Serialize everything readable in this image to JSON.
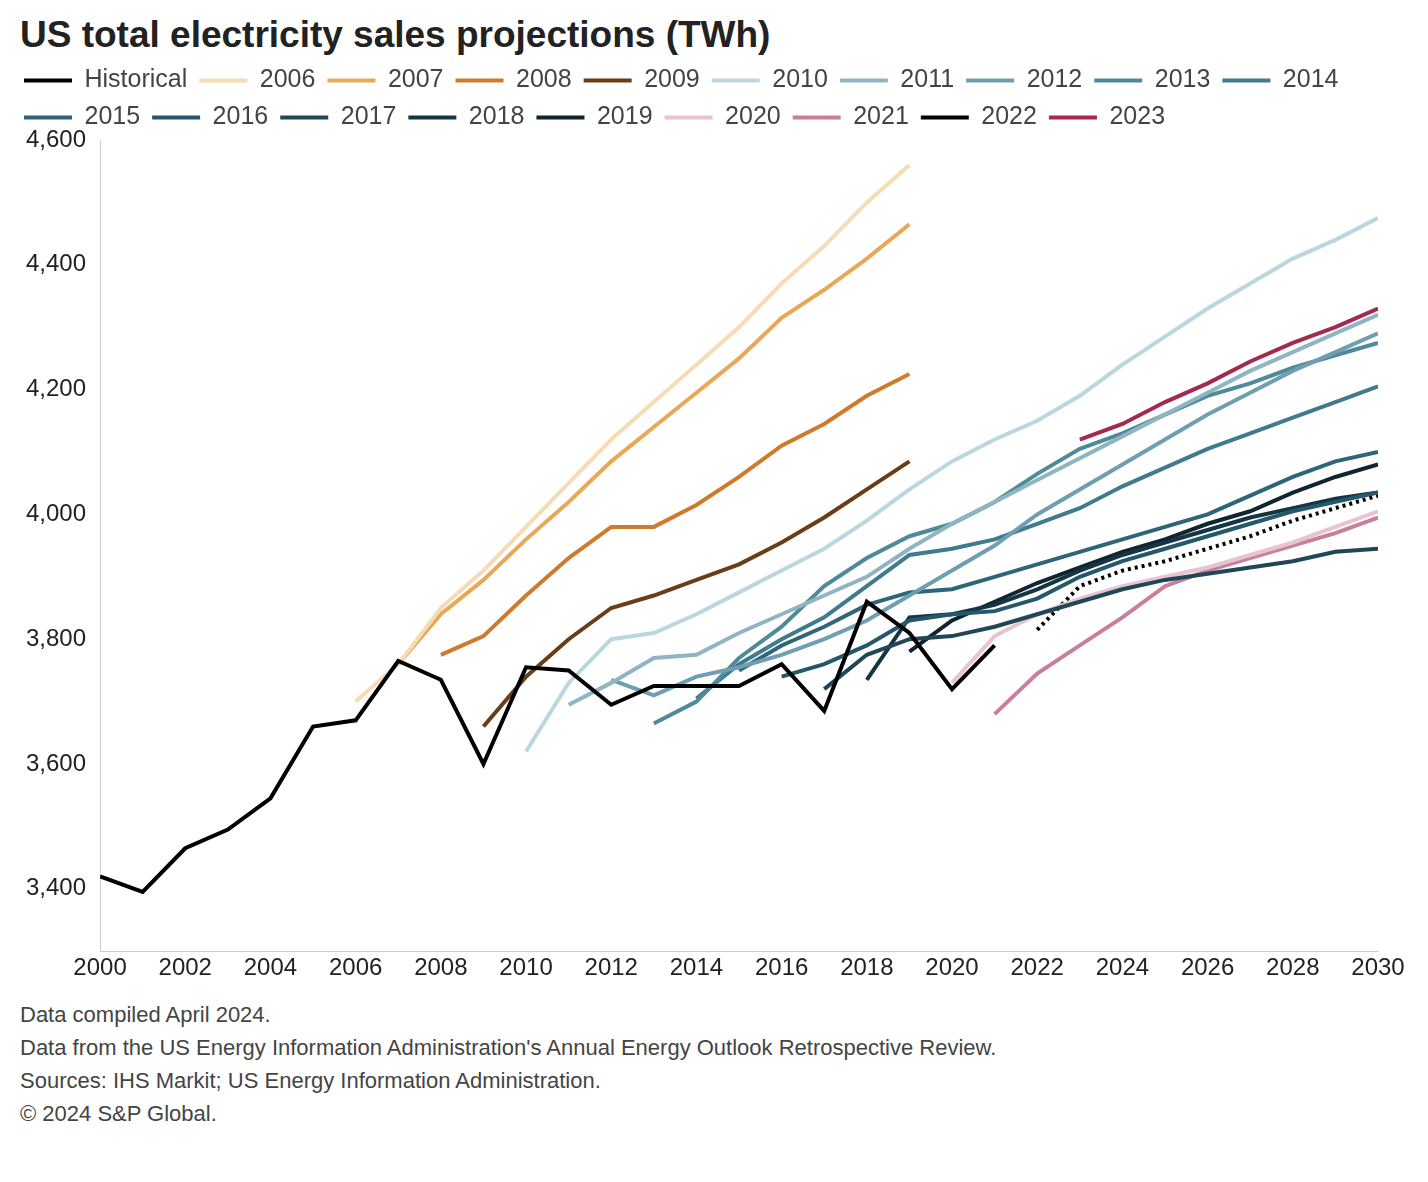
{
  "chart_data": {
    "type": "line",
    "title": "US total electricity sales projections (TWh)",
    "notes": [
      "Data compiled April 2024.",
      "Data from the US Energy Information Administration's Annual Energy Outlook Retrospective Review.",
      "Sources: IHS Markit; US Energy Information Administration.",
      "© 2024 S&P Global."
    ],
    "legend": "top-left",
    "grid": false,
    "x": [
      2000,
      2001,
      2002,
      2003,
      2004,
      2005,
      2006,
      2007,
      2008,
      2009,
      2010,
      2011,
      2012,
      2013,
      2014,
      2015,
      2016,
      2017,
      2018,
      2019,
      2020,
      2021,
      2022,
      2023,
      2024,
      2025,
      2026,
      2027,
      2028,
      2029,
      2030
    ],
    "xlim": [
      2000,
      2030
    ],
    "xticks": [
      2000,
      2002,
      2004,
      2006,
      2008,
      2010,
      2012,
      2014,
      2016,
      2018,
      2020,
      2022,
      2024,
      2026,
      2028,
      2030
    ],
    "ylim": [
      3300,
      4600
    ],
    "yticks": [
      {
        "value": 3400,
        "label": "3,400"
      },
      {
        "value": 3600,
        "label": "3,600"
      },
      {
        "value": 3800,
        "label": "3,800"
      },
      {
        "value": 4000,
        "label": "4,000"
      },
      {
        "value": 4200,
        "label": "4,200"
      },
      {
        "value": 4400,
        "label": "4,400"
      },
      {
        "value": 4600,
        "label": "4,600"
      }
    ],
    "series": [
      {
        "name": "Historical",
        "color": "#000000",
        "values": [
          3420,
          3395,
          3465,
          3495,
          3545,
          3660,
          3670,
          3765,
          3735,
          3600,
          3755,
          3750,
          3695,
          3725,
          3725,
          3725,
          3760,
          3685,
          3860,
          3810,
          3720,
          3790,
          null,
          null,
          null,
          null,
          null,
          null,
          null,
          null,
          null
        ]
      },
      {
        "name": "2006",
        "color": "#f5dcb5",
        "values": [
          null,
          null,
          null,
          null,
          null,
          null,
          3700,
          3760,
          3850,
          3910,
          3980,
          4050,
          4120,
          4180,
          4240,
          4300,
          4370,
          4430,
          4500,
          4560,
          null,
          null,
          null,
          null,
          null,
          null,
          null,
          null,
          null,
          null,
          null
        ]
      },
      {
        "name": "2007",
        "color": "#e8a857",
        "values": [
          null,
          null,
          null,
          null,
          null,
          null,
          null,
          3760,
          3840,
          3895,
          3960,
          4020,
          4085,
          4140,
          4195,
          4250,
          4315,
          4360,
          4410,
          4465,
          null,
          null,
          null,
          null,
          null,
          null,
          null,
          null,
          null,
          null,
          null
        ]
      },
      {
        "name": "2008",
        "color": "#d07a2c",
        "values": [
          null,
          null,
          null,
          null,
          null,
          null,
          null,
          null,
          3775,
          3805,
          3870,
          3930,
          3980,
          3980,
          4015,
          4060,
          4110,
          4145,
          4190,
          4225,
          null,
          null,
          null,
          null,
          null,
          null,
          null,
          null,
          null,
          null,
          null
        ]
      },
      {
        "name": "2009",
        "color": "#6b3d16",
        "values": [
          null,
          null,
          null,
          null,
          null,
          null,
          null,
          null,
          null,
          3660,
          3740,
          3800,
          3850,
          3870,
          3895,
          3920,
          3955,
          3995,
          4040,
          4085,
          null,
          null,
          null,
          null,
          null,
          null,
          null,
          null,
          null,
          null,
          null
        ]
      },
      {
        "name": "2010",
        "color": "#bcd6e0",
        "values": [
          null,
          null,
          null,
          null,
          null,
          null,
          null,
          null,
          null,
          null,
          3620,
          3730,
          3800,
          3810,
          3840,
          3875,
          3910,
          3945,
          3990,
          4040,
          4085,
          4120,
          4150,
          4190,
          4240,
          4285,
          4330,
          4370,
          4410,
          4440,
          4475
        ]
      },
      {
        "name": "2011",
        "color": "#8fb5c3",
        "values": [
          null,
          null,
          null,
          null,
          null,
          null,
          null,
          null,
          null,
          null,
          null,
          3695,
          3730,
          3770,
          3775,
          3810,
          3840,
          3870,
          3900,
          3945,
          3985,
          4020,
          4055,
          4090,
          4125,
          4160,
          4195,
          4230,
          4260,
          4290,
          4320
        ]
      },
      {
        "name": "2012",
        "color": "#6e9fb0",
        "values": [
          null,
          null,
          null,
          null,
          null,
          null,
          null,
          null,
          null,
          null,
          null,
          null,
          3735,
          3710,
          3740,
          3755,
          3775,
          3800,
          3830,
          3870,
          3910,
          3950,
          4000,
          4040,
          4080,
          4120,
          4160,
          4195,
          4230,
          4260,
          4290
        ]
      },
      {
        "name": "2013",
        "color": "#4f8a9b",
        "values": [
          null,
          null,
          null,
          null,
          null,
          null,
          null,
          null,
          null,
          null,
          null,
          null,
          null,
          3665,
          3700,
          3770,
          3820,
          3885,
          3930,
          3965,
          3985,
          4020,
          4065,
          4105,
          4130,
          4160,
          4190,
          4210,
          4235,
          4255,
          4275
        ]
      },
      {
        "name": "2014",
        "color": "#3f7a8e",
        "values": [
          null,
          null,
          null,
          null,
          null,
          null,
          null,
          null,
          null,
          null,
          null,
          null,
          null,
          null,
          3705,
          3760,
          3800,
          3835,
          3885,
          3935,
          3945,
          3960,
          3985,
          4010,
          4045,
          4075,
          4105,
          4130,
          4155,
          4180,
          4205
        ]
      },
      {
        "name": "2015",
        "color": "#2e6579",
        "values": [
          null,
          null,
          null,
          null,
          null,
          null,
          null,
          null,
          null,
          null,
          null,
          null,
          null,
          null,
          null,
          3750,
          3790,
          3820,
          3855,
          3875,
          3880,
          3900,
          3920,
          3940,
          3960,
          3980,
          4000,
          4030,
          4060,
          4085,
          4100
        ]
      },
      {
        "name": "2016",
        "color": "#25586b",
        "values": [
          null,
          null,
          null,
          null,
          null,
          null,
          null,
          null,
          null,
          null,
          null,
          null,
          null,
          null,
          null,
          null,
          3740,
          3760,
          3790,
          3830,
          3840,
          3845,
          3865,
          3900,
          3925,
          3945,
          3965,
          3985,
          4005,
          4020,
          4035
        ]
      },
      {
        "name": "2017",
        "color": "#1f4757",
        "values": [
          null,
          null,
          null,
          null,
          null,
          null,
          null,
          null,
          null,
          null,
          null,
          null,
          null,
          null,
          null,
          null,
          null,
          3720,
          3775,
          3800,
          3805,
          3820,
          3840,
          3860,
          3880,
          3895,
          3905,
          3915,
          3925,
          3940,
          3945
        ]
      },
      {
        "name": "2018",
        "color": "#163544",
        "values": [
          null,
          null,
          null,
          null,
          null,
          null,
          null,
          null,
          null,
          null,
          null,
          null,
          null,
          null,
          null,
          null,
          null,
          null,
          3735,
          3835,
          3840,
          3855,
          3880,
          3910,
          3935,
          3955,
          3975,
          3995,
          4010,
          4025,
          4035
        ]
      },
      {
        "name": "2019",
        "color": "#0f2530",
        "values": [
          null,
          null,
          null,
          null,
          null,
          null,
          null,
          null,
          null,
          null,
          null,
          null,
          null,
          null,
          null,
          null,
          null,
          null,
          null,
          3780,
          3830,
          3860,
          3890,
          3915,
          3940,
          3960,
          3985,
          4005,
          4035,
          4060,
          4080
        ]
      },
      {
        "name": "2020",
        "color": "#e8c4d0",
        "values": [
          null,
          null,
          null,
          null,
          null,
          null,
          null,
          null,
          null,
          null,
          null,
          null,
          null,
          null,
          null,
          null,
          null,
          null,
          null,
          null,
          3730,
          3805,
          3840,
          3865,
          3885,
          3900,
          3915,
          3935,
          3955,
          3980,
          4005
        ]
      },
      {
        "name": "2021",
        "color": "#c97f9b",
        "values": [
          null,
          null,
          null,
          null,
          null,
          null,
          null,
          null,
          null,
          null,
          null,
          null,
          null,
          null,
          null,
          null,
          null,
          null,
          null,
          null,
          null,
          3680,
          3745,
          3790,
          3835,
          3885,
          3910,
          3930,
          3950,
          3970,
          3995
        ]
      },
      {
        "name": "2022",
        "color": "#000000",
        "line_style": "dotted",
        "values": [
          null,
          null,
          null,
          null,
          null,
          null,
          null,
          null,
          null,
          null,
          null,
          null,
          null,
          null,
          null,
          null,
          null,
          null,
          null,
          null,
          null,
          null,
          3815,
          3885,
          3910,
          3925,
          3945,
          3965,
          3990,
          4010,
          4030
        ]
      },
      {
        "name": "2023",
        "color": "#a3294e",
        "values": [
          null,
          null,
          null,
          null,
          null,
          null,
          null,
          null,
          null,
          null,
          null,
          null,
          null,
          null,
          null,
          null,
          null,
          null,
          null,
          null,
          null,
          null,
          null,
          4120,
          4145,
          4180,
          4210,
          4245,
          4275,
          4300,
          4330
        ]
      }
    ]
  }
}
